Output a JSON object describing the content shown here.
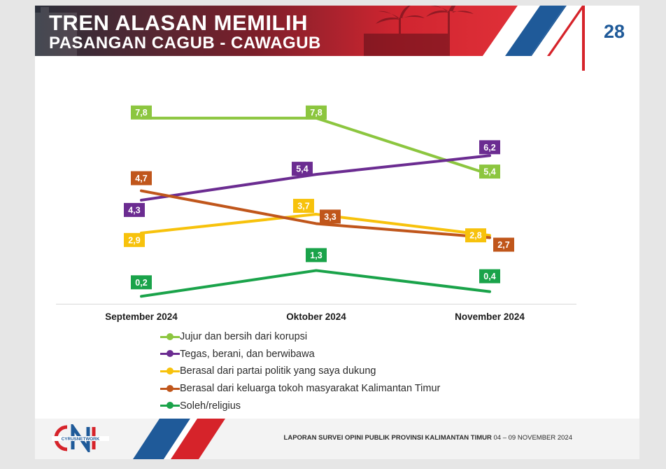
{
  "header": {
    "title": "TREN ALASAN MEMILIH",
    "subtitle": "PASANGAN CAGUB - CAWAGUB",
    "page_number": "28"
  },
  "chart_data": {
    "type": "line",
    "title": "",
    "xlabel": "",
    "ylabel": "",
    "categories": [
      "September 2024",
      "Oktober 2024",
      "November 2024"
    ],
    "ylim": [
      0,
      8.5
    ],
    "grid": false,
    "legend_position": "bottom-left",
    "series": [
      {
        "name": "Jujur dan bersih dari korupsi",
        "values": [
          7.8,
          7.8,
          5.4
        ],
        "labels": [
          "7,8",
          "7,8",
          "5,4"
        ],
        "color": "#8cc63f"
      },
      {
        "name": "Tegas, berani, dan berwibawa",
        "values": [
          4.3,
          5.4,
          6.2
        ],
        "labels": [
          "4,3",
          "5,4",
          "6,2"
        ],
        "color": "#6b2c91"
      },
      {
        "name": "Berasal dari partai politik yang saya dukung",
        "values": [
          2.9,
          3.7,
          2.8
        ],
        "labels": [
          "2,9",
          "3,7",
          "2,8"
        ],
        "color": "#f7c20c"
      },
      {
        "name": "Berasal dari keluarga tokoh masyarakat Kalimantan Timur",
        "values": [
          4.7,
          3.3,
          2.7
        ],
        "labels": [
          "4,7",
          "3,3",
          "2,7"
        ],
        "color": "#c0561b"
      },
      {
        "name": "Soleh/religius",
        "values": [
          0.2,
          1.3,
          0.4
        ],
        "labels": [
          "0,2",
          "1,3",
          "0,4"
        ],
        "color": "#1aa34a"
      }
    ]
  },
  "footer": {
    "logo_text": "CYRUSNETWORK",
    "report_label": "LAPORAN SURVEI OPINI PUBLIK PROVINSI KALIMANTAN TIMUR",
    "report_date": "04 – 09 NOVEMBER 2024"
  },
  "colors": {
    "header_red": "#c8202a",
    "header_blue": "#1f5a99",
    "accent_red": "#d6232a",
    "page_number_blue": "#1f5a99"
  }
}
